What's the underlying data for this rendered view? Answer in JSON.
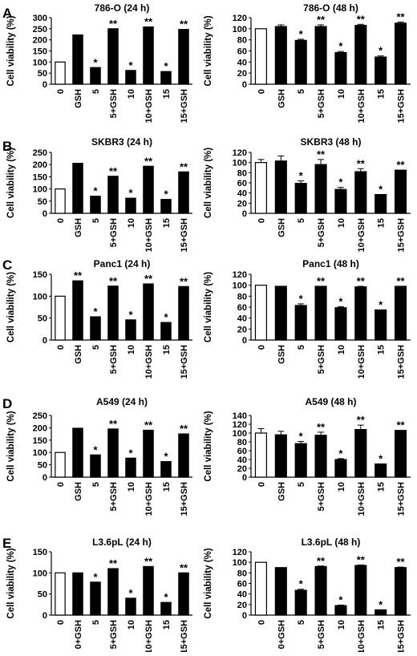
{
  "panel_letters": [
    "A",
    "B",
    "C",
    "D",
    "E"
  ],
  "chart_data": [
    {
      "type": "bar",
      "title": "786-O (24 h)",
      "ylabel": "Cell viability (%)",
      "categories": [
        "0",
        "GSH",
        "5",
        "5+GSH",
        "10",
        "10+GSH",
        "15",
        "15+GSH"
      ],
      "values": [
        100,
        222,
        75,
        250,
        62,
        258,
        57,
        247
      ],
      "errors": [
        0,
        0,
        0,
        0,
        0,
        0,
        0,
        0
      ],
      "significance": [
        "",
        "",
        "*",
        "**",
        "*",
        "**",
        "*",
        "**"
      ],
      "ylim": [
        0,
        300
      ],
      "yticks": [
        0,
        50,
        100,
        150,
        200,
        250,
        300
      ],
      "bar_fill": [
        "white",
        "black",
        "black",
        "black",
        "black",
        "black",
        "black",
        "black"
      ]
    },
    {
      "type": "bar",
      "title": "786-O (48 h)",
      "ylabel": "Cell viability (%)",
      "categories": [
        "0",
        "GSH",
        "5",
        "5+GSH",
        "10",
        "10+GSH",
        "15",
        "15+GSH"
      ],
      "values": [
        100,
        104,
        79,
        104,
        57,
        106,
        49,
        110
      ],
      "errors": [
        0,
        3,
        2,
        3,
        2,
        2,
        2,
        2
      ],
      "significance": [
        "",
        "",
        "*",
        "**",
        "*",
        "**",
        "*",
        "**"
      ],
      "ylim": [
        0,
        120
      ],
      "yticks": [
        0,
        20,
        40,
        60,
        80,
        100,
        120
      ],
      "bar_fill": [
        "white",
        "black",
        "black",
        "black",
        "black",
        "black",
        "black",
        "black"
      ]
    },
    {
      "type": "bar",
      "title": "SKBR3 (24 h)",
      "ylabel": "Cell viability (%)",
      "categories": [
        "0",
        "GSH",
        "5",
        "5+GSH",
        "10",
        "10+GSH",
        "15",
        "15+GSH"
      ],
      "values": [
        100,
        205,
        70,
        152,
        62,
        193,
        57,
        170
      ],
      "errors": [
        0,
        0,
        0,
        0,
        0,
        0,
        0,
        0
      ],
      "significance": [
        "",
        "",
        "*",
        "**",
        "*",
        "**",
        "*",
        "**"
      ],
      "ylim": [
        0,
        250
      ],
      "yticks": [
        0,
        50,
        100,
        150,
        200,
        250
      ],
      "bar_fill": [
        "white",
        "black",
        "black",
        "black",
        "black",
        "black",
        "black",
        "black"
      ]
    },
    {
      "type": "bar",
      "title": "SKBR3 (48 h)",
      "ylabel": "Cell viability (%)",
      "categories": [
        "0",
        "GSH",
        "5",
        "5+GSH",
        "10",
        "10+GSH",
        "15",
        "15+GSH"
      ],
      "values": [
        100,
        103,
        59,
        96,
        47,
        82,
        37,
        85
      ],
      "errors": [
        6,
        10,
        5,
        10,
        4,
        6,
        0,
        0
      ],
      "significance": [
        "",
        "",
        "*",
        "**",
        "*",
        "**",
        "*",
        "**"
      ],
      "ylim": [
        0,
        120
      ],
      "yticks": [
        0,
        20,
        40,
        60,
        80,
        100,
        120
      ],
      "bar_fill": [
        "white",
        "black",
        "black",
        "black",
        "black",
        "black",
        "black",
        "black"
      ]
    },
    {
      "type": "bar",
      "title": "Panc1 (24 h)",
      "ylabel": "Cell viability (%)",
      "categories": [
        "0",
        "GSH",
        "5",
        "5+GSH",
        "10",
        "10+GSH",
        "15",
        "15+GSH"
      ],
      "values": [
        100,
        135,
        53,
        123,
        46,
        128,
        40,
        122
      ],
      "errors": [
        0,
        0,
        0,
        0,
        0,
        0,
        0,
        0
      ],
      "significance": [
        "",
        "**",
        "*",
        "**",
        "*",
        "**",
        "*",
        "**"
      ],
      "ylim": [
        0,
        150
      ],
      "yticks": [
        0,
        50,
        100,
        150
      ],
      "bar_fill": [
        "white",
        "black",
        "black",
        "black",
        "black",
        "black",
        "black",
        "black"
      ]
    },
    {
      "type": "bar",
      "title": "Panc1 (48 h)",
      "ylabel": "Cell viability (%)",
      "categories": [
        "0",
        "GSH",
        "5",
        "5+GSH",
        "10",
        "10+GSH",
        "15",
        "15+GSH"
      ],
      "values": [
        100,
        98,
        63,
        98,
        59,
        97,
        55,
        98
      ],
      "errors": [
        0,
        0,
        3,
        0,
        2,
        1,
        0,
        0
      ],
      "significance": [
        "",
        "",
        "*",
        "**",
        "*",
        "**",
        "*",
        "**"
      ],
      "ylim": [
        0,
        120
      ],
      "yticks": [
        0,
        20,
        40,
        60,
        80,
        100,
        120
      ],
      "bar_fill": [
        "white",
        "black",
        "black",
        "black",
        "black",
        "black",
        "black",
        "black"
      ]
    },
    {
      "type": "bar",
      "title": "A549 (24 h)",
      "ylabel": "Cell viability (%)",
      "categories": [
        "0",
        "GSH",
        "5",
        "5+GSH",
        "10",
        "10+GSH",
        "15",
        "15+GSH"
      ],
      "values": [
        100,
        198,
        90,
        195,
        77,
        190,
        63,
        175
      ],
      "errors": [
        0,
        0,
        0,
        0,
        0,
        0,
        0,
        0
      ],
      "significance": [
        "",
        "",
        "*",
        "**",
        "*",
        "**",
        "*",
        "**"
      ],
      "ylim": [
        0,
        250
      ],
      "yticks": [
        0,
        50,
        100,
        150,
        200,
        250
      ],
      "bar_fill": [
        "white",
        "black",
        "black",
        "black",
        "black",
        "black",
        "black",
        "black"
      ]
    },
    {
      "type": "bar",
      "title": "A549 (48 h)",
      "ylabel": "Cell viability (%)",
      "categories": [
        "0",
        "GSH",
        "5",
        "5+GSH",
        "10",
        "10+GSH",
        "15",
        "15+GSH"
      ],
      "values": [
        100,
        96,
        76,
        95,
        40,
        108,
        30,
        106
      ],
      "errors": [
        10,
        8,
        5,
        7,
        2,
        10,
        0,
        0
      ],
      "significance": [
        "",
        "",
        "*",
        "**",
        "*",
        "**",
        "*",
        "**"
      ],
      "ylim": [
        0,
        140
      ],
      "yticks": [
        0,
        20,
        40,
        60,
        80,
        100,
        120,
        140
      ],
      "bar_fill": [
        "white",
        "black",
        "black",
        "black",
        "black",
        "black",
        "black",
        "black"
      ]
    },
    {
      "type": "bar",
      "title": "L3.6pL (24 h)",
      "ylabel": "Cell viability (%)",
      "categories": [
        "0",
        "0+GSH",
        "5",
        "5+GSH",
        "10",
        "10+GSH",
        "15",
        "15+GSH"
      ],
      "values": [
        100,
        100,
        78,
        110,
        40,
        115,
        30,
        100
      ],
      "errors": [
        0,
        0,
        0,
        0,
        0,
        0,
        0,
        0
      ],
      "significance": [
        "",
        "",
        "*",
        "**",
        "*",
        "**",
        "*",
        "**"
      ],
      "ylim": [
        0,
        150
      ],
      "yticks": [
        0,
        50,
        100,
        150
      ],
      "bar_fill": [
        "white",
        "black",
        "black",
        "black",
        "black",
        "black",
        "black",
        "black"
      ]
    },
    {
      "type": "bar",
      "title": "L3.6pL (48 h)",
      "ylabel": "Cell viability (%)",
      "categories": [
        "0",
        "0+GSH",
        "5",
        "5+GSH",
        "10",
        "10+GSH",
        "15",
        "15+GSH"
      ],
      "values": [
        100,
        90,
        47,
        92,
        18,
        94,
        10,
        90
      ],
      "errors": [
        0,
        0,
        2,
        1,
        1,
        1,
        0,
        1
      ],
      "significance": [
        "",
        "",
        "*",
        "**",
        "*",
        "**",
        "*",
        "**"
      ],
      "ylim": [
        0,
        120
      ],
      "yticks": [
        0,
        20,
        40,
        60,
        80,
        100,
        120
      ],
      "bar_fill": [
        "white",
        "black",
        "black",
        "black",
        "black",
        "black",
        "black",
        "black"
      ]
    }
  ]
}
